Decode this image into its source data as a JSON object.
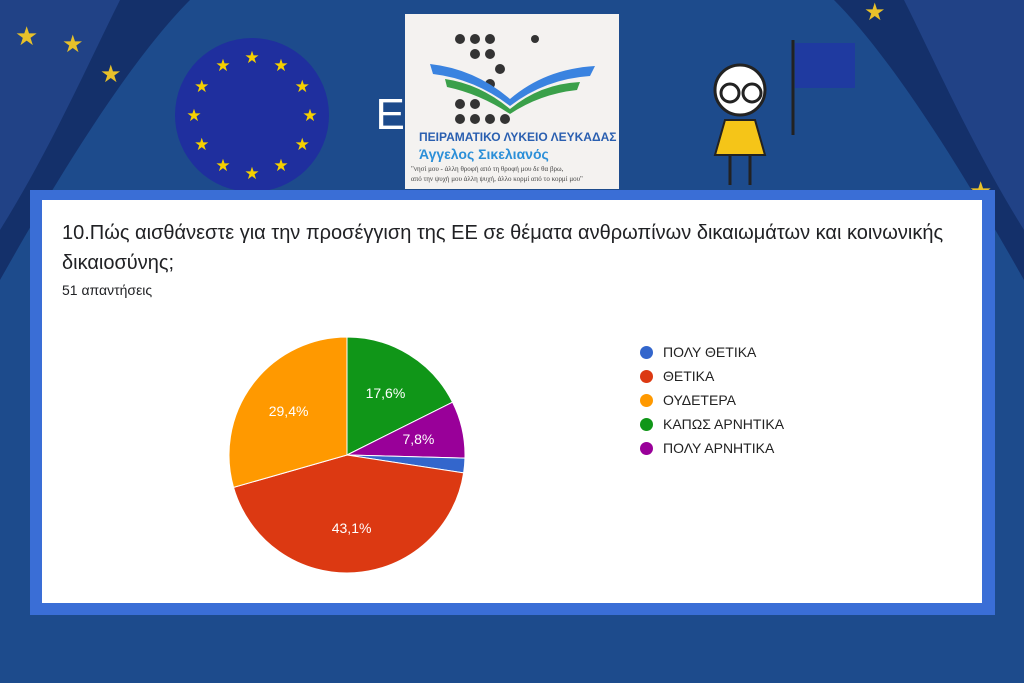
{
  "header": {
    "eu_label": "EU",
    "school_line1": "ΠΕΙΡΑΜΑΤΙΚΟ ΛΥΚΕΙΟ ΛΕΥΚΑΔΑΣ",
    "school_line2": "Άγγελος Σικελιανός",
    "quote_line1": "\"νησί μου - άλλη θροφή από τη θροφή μου δε θα βρω,",
    "quote_line2": "από την ψυχή μου άλλη ψυχή, άλλο κορμί από το κορμί μου\""
  },
  "chart_data": {
    "type": "pie",
    "title": "10.Πώς αισθάνεστε για την προσέγγιση της ΕΕ σε θέματα ανθρωπίνων δικαιωμάτων και κοινωνικής δικαιοσύνης;",
    "subtitle": "51 απαντήσεις",
    "categories": [
      "ΠΟΛΥ ΘΕΤΙΚΑ",
      "ΘΕΤΙΚΑ",
      "ΟΥΔΕΤΕΡΑ",
      "ΚΑΠΩΣ ΑΡΝΗΤΙΚΑ",
      "ΠΟΛΥ ΑΡΝΗΤΙΚΑ"
    ],
    "values": [
      2.0,
      43.1,
      29.4,
      17.6,
      7.8
    ],
    "labels": [
      "",
      "43,1%",
      "29,4%",
      "17,6%",
      "7,8%"
    ],
    "colors": [
      "#3366cc",
      "#dc3912",
      "#ff9900",
      "#109618",
      "#990099"
    ],
    "legend_position": "right"
  }
}
